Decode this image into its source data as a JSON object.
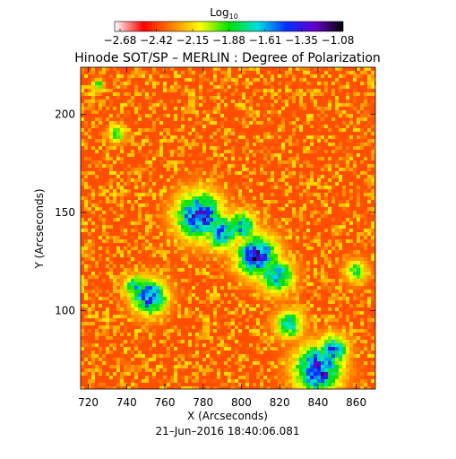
{
  "chart_data": {
    "type": "heatmap",
    "title": "Hinode SOT/SP – MERLIN : Degree of Polarization",
    "xlabel": "X (Arcseconds)",
    "ylabel": "Y (Arcseconds)",
    "timestamp": "21–Jun–2016 18:40:06.081",
    "xlim": [
      716,
      870
    ],
    "ylim": [
      60,
      224
    ],
    "x_ticks": [
      720,
      740,
      760,
      780,
      800,
      820,
      840,
      860
    ],
    "y_ticks": [
      100,
      150,
      200
    ],
    "colorbar": {
      "label_main": "Log",
      "label_sub": "10",
      "tick_labels": [
        "−2.68",
        "−2.42",
        "−2.15",
        "−1.88",
        "−1.61",
        "−1.35",
        "−1.08"
      ],
      "range": [
        -2.68,
        -1.08
      ],
      "colormap": "rainbow",
      "stops": [
        "#ffffff",
        "#ff0000",
        "#ff8000",
        "#ffff00",
        "#00e000",
        "#00e0e0",
        "#0030ff",
        "#6600cc",
        "#000000"
      ]
    },
    "grid": false,
    "background_level": -2.55,
    "features": [
      {
        "x": 778,
        "y": 148,
        "radius": 8,
        "peak": -1.25
      },
      {
        "x": 790,
        "y": 140,
        "radius": 6,
        "peak": -1.45
      },
      {
        "x": 808,
        "y": 128,
        "radius": 7,
        "peak": -1.15
      },
      {
        "x": 800,
        "y": 143,
        "radius": 5,
        "peak": -1.55
      },
      {
        "x": 818,
        "y": 118,
        "radius": 6,
        "peak": -1.5
      },
      {
        "x": 752,
        "y": 107,
        "radius": 6,
        "peak": -1.3
      },
      {
        "x": 745,
        "y": 112,
        "radius": 4,
        "peak": -1.6
      },
      {
        "x": 840,
        "y": 70,
        "radius": 8,
        "peak": -1.2
      },
      {
        "x": 848,
        "y": 80,
        "radius": 5,
        "peak": -1.45
      },
      {
        "x": 825,
        "y": 93,
        "radius": 5,
        "peak": -1.7
      },
      {
        "x": 860,
        "y": 120,
        "radius": 4,
        "peak": -1.9
      },
      {
        "x": 735,
        "y": 190,
        "radius": 3,
        "peak": -1.9
      },
      {
        "x": 725,
        "y": 215,
        "radius": 2,
        "peak": -1.9
      }
    ]
  }
}
